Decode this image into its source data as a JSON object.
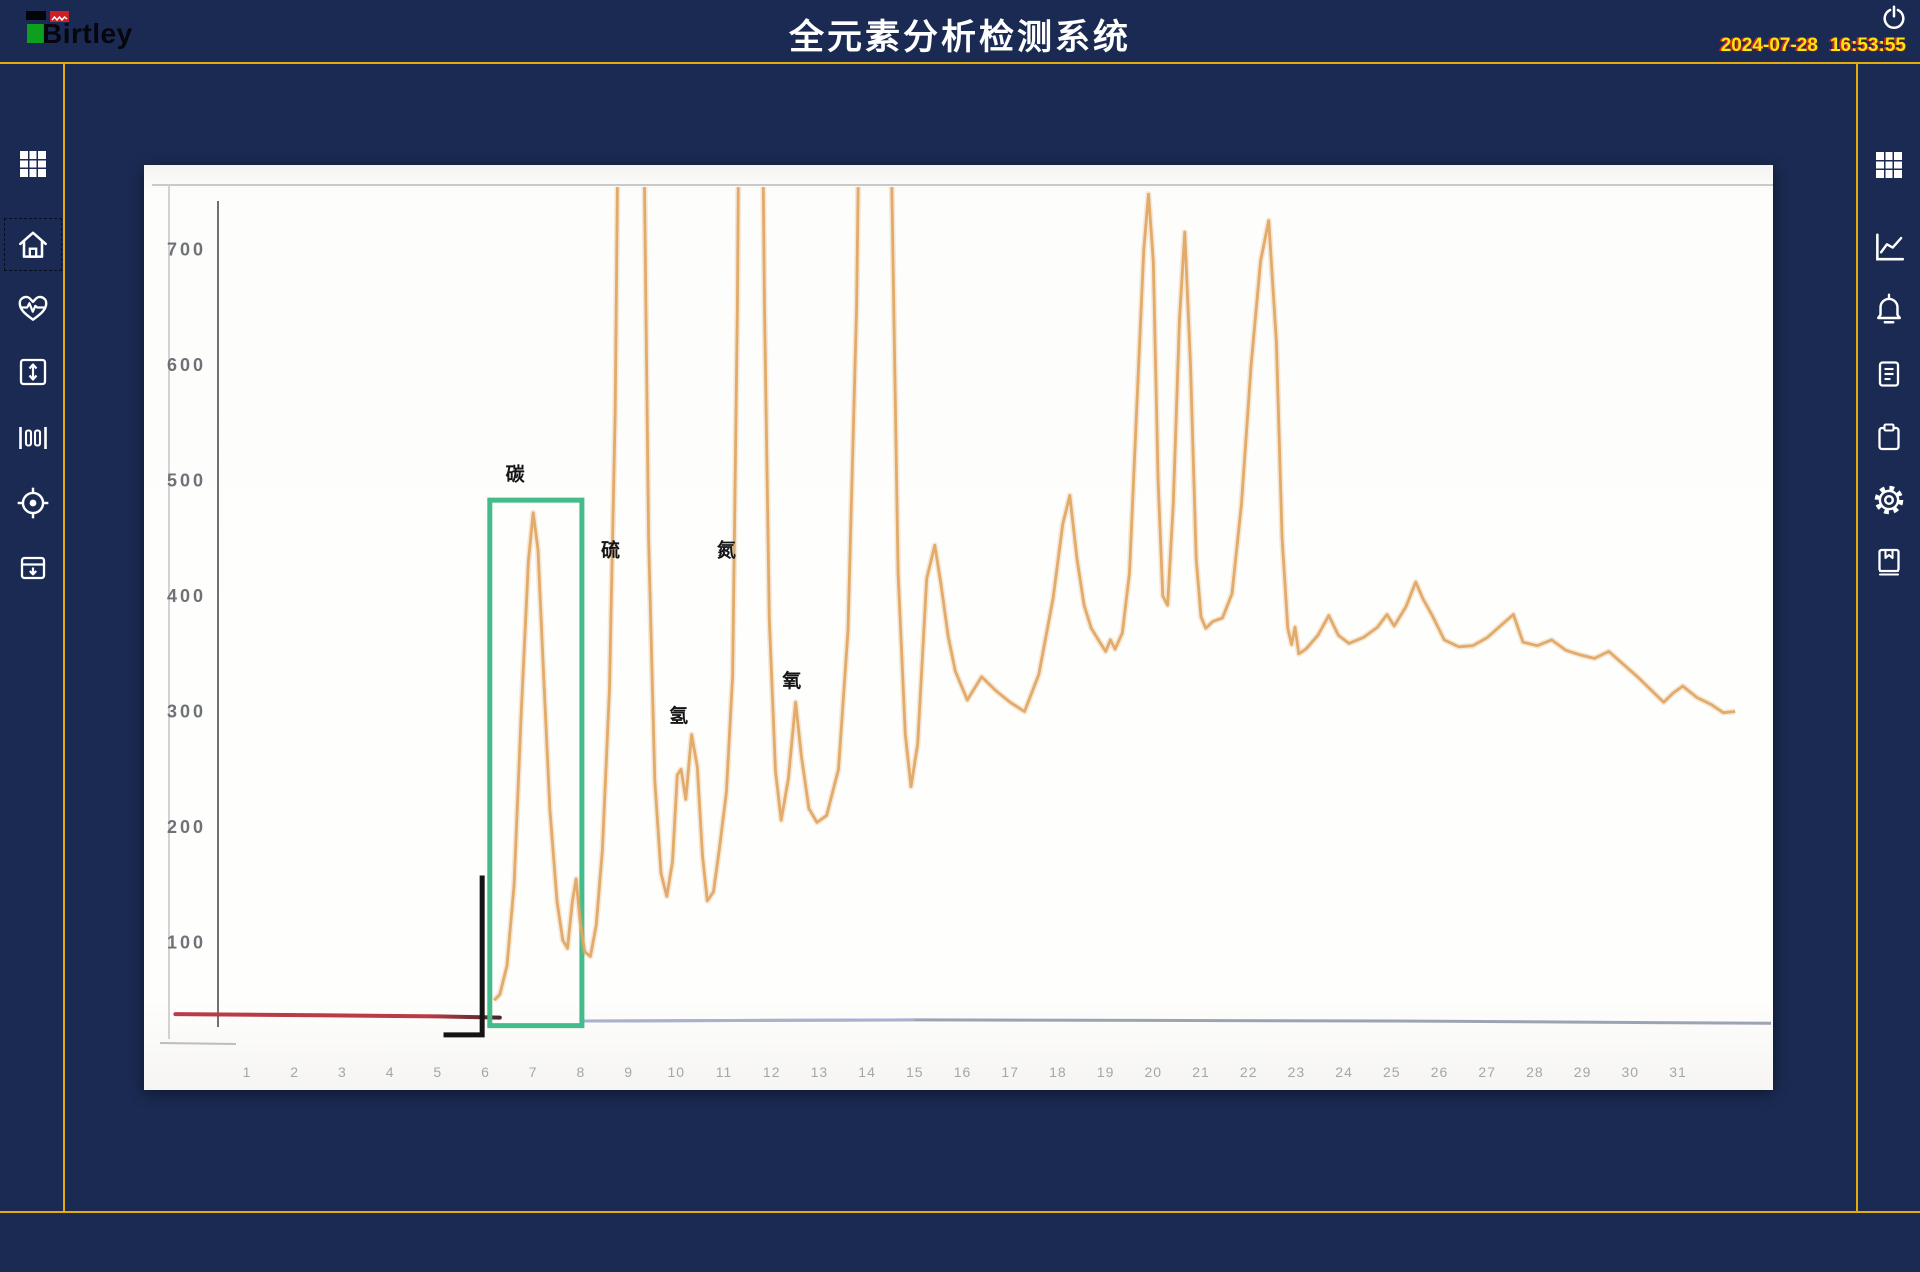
{
  "header": {
    "brand": "Birtley",
    "title": "全元素分析检测系统",
    "date": "2024-07-28",
    "time": "16:53:55"
  },
  "left_sidebar": {
    "items": [
      {
        "icon": "app-grid-icon",
        "selected": false
      },
      {
        "icon": "home-icon",
        "selected": true
      },
      {
        "icon": "health-pulse-icon",
        "selected": false
      },
      {
        "icon": "vertical-range-icon",
        "selected": false
      },
      {
        "icon": "gate-bars-icon",
        "selected": false
      },
      {
        "icon": "target-icon",
        "selected": false
      },
      {
        "icon": "sample-box-icon",
        "selected": false
      }
    ]
  },
  "right_sidebar": {
    "items": [
      {
        "icon": "app-grid-icon"
      },
      {
        "icon": "trend-chart-icon"
      },
      {
        "icon": "alarm-bell-icon"
      },
      {
        "icon": "report-list-icon"
      },
      {
        "icon": "clipboard-icon"
      },
      {
        "icon": "settings-gear-icon"
      },
      {
        "icon": "logbook-icon"
      }
    ]
  },
  "colors": {
    "background_navy": "#1a2a52",
    "accent_yellow": "#e3ac0b",
    "clock_yellow": "#f6e70d",
    "title_white": "#ffffff",
    "trace_amber": "#e0a863",
    "highlight_green": "#44bb8b",
    "red_baseline": "#b93b46",
    "gray_baseline": "#8b93a4",
    "logo_red": "#cf1f24",
    "logo_green": "#0f9f1e"
  },
  "chart_data": {
    "type": "line",
    "title": "",
    "xlabel": "",
    "ylabel": "",
    "xlim": [
      -1,
      33.5
    ],
    "ylim": [
      0,
      756
    ],
    "grid": false,
    "legend": "none",
    "note": "scanned chromatogram; peaks taller than ~756 are clipped at the plot top",
    "xticks": [
      1,
      2,
      3,
      4,
      5,
      6,
      7,
      8,
      9,
      10,
      11,
      12,
      13,
      14,
      15,
      16,
      17,
      18,
      19,
      20,
      21,
      22,
      23,
      24,
      25,
      26,
      27,
      28,
      29,
      30,
      31
    ],
    "yticks": [
      100,
      200,
      300,
      400,
      500,
      600,
      700
    ],
    "annotations": [
      {
        "text": "碳",
        "x": 6.62,
        "y": 500
      },
      {
        "text": "硫",
        "x": 8.62,
        "y": 434
      },
      {
        "text": "氢",
        "x": 10.05,
        "y": 291
      },
      {
        "text": "氮",
        "x": 11.05,
        "y": 434
      },
      {
        "text": "氧",
        "x": 12.42,
        "y": 321
      }
    ],
    "highlight_box": {
      "x0": 6.09,
      "x1": 8.02,
      "y0": 28,
      "y1": 483,
      "color": "#44bb8b"
    },
    "bracket": {
      "x": 5.93,
      "x_foot": 5.12,
      "y_top": 158,
      "y_bottom": 20,
      "color": "#141414"
    },
    "series": [
      {
        "name": "pre-injection baseline (red)",
        "color": "#b93b46",
        "points": [
          [
            -0.5,
            38
          ],
          [
            2.5,
            37
          ],
          [
            5.0,
            36
          ],
          [
            6.3,
            35
          ]
        ]
      },
      {
        "name": "baseline (gray)",
        "color": "#8b93a4",
        "points": [
          [
            8.05,
            32
          ],
          [
            15,
            33
          ],
          [
            25,
            32
          ],
          [
            33.3,
            30
          ]
        ]
      },
      {
        "name": "chromatogram trace (amber)",
        "color": "#e0a863",
        "points": [
          [
            6.18,
            50
          ],
          [
            6.3,
            55
          ],
          [
            6.45,
            80
          ],
          [
            6.6,
            150
          ],
          [
            6.75,
            300
          ],
          [
            6.9,
            430
          ],
          [
            7.0,
            472
          ],
          [
            7.1,
            440
          ],
          [
            7.22,
            330
          ],
          [
            7.35,
            215
          ],
          [
            7.5,
            135
          ],
          [
            7.62,
            102
          ],
          [
            7.72,
            95
          ],
          [
            7.82,
            135
          ],
          [
            7.9,
            155
          ],
          [
            7.98,
            120
          ],
          [
            8.08,
            92
          ],
          [
            8.2,
            88
          ],
          [
            8.32,
            115
          ],
          [
            8.45,
            180
          ],
          [
            8.6,
            320
          ],
          [
            8.72,
            560
          ],
          [
            8.8,
            900
          ],
          [
            8.86,
            1100
          ],
          [
            9.22,
            1100
          ],
          [
            9.32,
            800
          ],
          [
            9.42,
            450
          ],
          [
            9.55,
            240
          ],
          [
            9.68,
            160
          ],
          [
            9.8,
            140
          ],
          [
            9.92,
            170
          ],
          [
            10.02,
            245
          ],
          [
            10.1,
            250
          ],
          [
            10.2,
            224
          ],
          [
            10.32,
            280
          ],
          [
            10.44,
            252
          ],
          [
            10.55,
            175
          ],
          [
            10.65,
            136
          ],
          [
            10.78,
            144
          ],
          [
            10.9,
            180
          ],
          [
            11.05,
            230
          ],
          [
            11.18,
            330
          ],
          [
            11.28,
            650
          ],
          [
            11.36,
            1100
          ],
          [
            11.74,
            1100
          ],
          [
            11.85,
            650
          ],
          [
            11.95,
            380
          ],
          [
            12.08,
            248
          ],
          [
            12.2,
            206
          ],
          [
            12.35,
            242
          ],
          [
            12.5,
            308
          ],
          [
            12.62,
            262
          ],
          [
            12.78,
            216
          ],
          [
            12.95,
            204
          ],
          [
            13.15,
            210
          ],
          [
            13.4,
            250
          ],
          [
            13.6,
            370
          ],
          [
            13.78,
            650
          ],
          [
            13.92,
            1100
          ],
          [
            14.42,
            1100
          ],
          [
            14.52,
            750
          ],
          [
            14.65,
            420
          ],
          [
            14.8,
            280
          ],
          [
            14.92,
            235
          ],
          [
            15.06,
            272
          ],
          [
            15.25,
            415
          ],
          [
            15.42,
            444
          ],
          [
            15.55,
            410
          ],
          [
            15.7,
            365
          ],
          [
            15.85,
            335
          ],
          [
            16.1,
            310
          ],
          [
            16.4,
            330
          ],
          [
            16.7,
            318
          ],
          [
            17.0,
            308
          ],
          [
            17.3,
            300
          ],
          [
            17.6,
            332
          ],
          [
            17.9,
            398
          ],
          [
            18.1,
            462
          ],
          [
            18.25,
            487
          ],
          [
            18.4,
            432
          ],
          [
            18.55,
            392
          ],
          [
            18.7,
            372
          ],
          [
            18.85,
            362
          ],
          [
            19.0,
            352
          ],
          [
            19.1,
            362
          ],
          [
            19.2,
            354
          ],
          [
            19.35,
            368
          ],
          [
            19.5,
            420
          ],
          [
            19.65,
            560
          ],
          [
            19.8,
            700
          ],
          [
            19.9,
            748
          ],
          [
            20.0,
            690
          ],
          [
            20.1,
            500
          ],
          [
            20.2,
            400
          ],
          [
            20.3,
            392
          ],
          [
            20.42,
            480
          ],
          [
            20.55,
            640
          ],
          [
            20.66,
            715
          ],
          [
            20.78,
            600
          ],
          [
            20.9,
            432
          ],
          [
            21.0,
            382
          ],
          [
            21.1,
            372
          ],
          [
            21.25,
            378
          ],
          [
            21.45,
            381
          ],
          [
            21.65,
            402
          ],
          [
            21.85,
            480
          ],
          [
            22.05,
            600
          ],
          [
            22.25,
            690
          ],
          [
            22.42,
            725
          ],
          [
            22.58,
            620
          ],
          [
            22.7,
            450
          ],
          [
            22.82,
            372
          ],
          [
            22.9,
            358
          ],
          [
            22.97,
            373
          ],
          [
            23.05,
            350
          ],
          [
            23.2,
            354
          ],
          [
            23.45,
            366
          ],
          [
            23.68,
            383
          ],
          [
            23.88,
            366
          ],
          [
            24.1,
            359
          ],
          [
            24.4,
            364
          ],
          [
            24.7,
            373
          ],
          [
            24.9,
            384
          ],
          [
            25.05,
            374
          ],
          [
            25.3,
            391
          ],
          [
            25.5,
            412
          ],
          [
            25.66,
            397
          ],
          [
            25.85,
            383
          ],
          [
            26.1,
            362
          ],
          [
            26.4,
            356
          ],
          [
            26.7,
            357
          ],
          [
            27.0,
            364
          ],
          [
            27.3,
            375
          ],
          [
            27.55,
            384
          ],
          [
            27.75,
            360
          ],
          [
            28.05,
            357
          ],
          [
            28.35,
            362
          ],
          [
            28.65,
            353
          ],
          [
            28.95,
            349
          ],
          [
            29.25,
            346
          ],
          [
            29.55,
            352
          ],
          [
            29.85,
            341
          ],
          [
            30.15,
            330
          ],
          [
            30.45,
            318
          ],
          [
            30.7,
            308
          ],
          [
            30.9,
            316
          ],
          [
            31.1,
            322
          ],
          [
            31.4,
            312
          ],
          [
            31.7,
            306
          ],
          [
            31.95,
            299
          ],
          [
            32.2,
            300
          ]
        ]
      }
    ]
  }
}
